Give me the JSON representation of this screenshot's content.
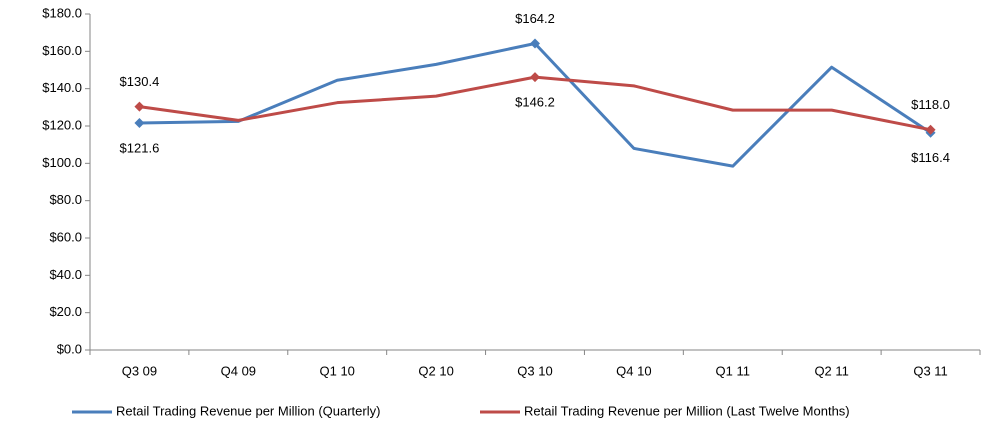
{
  "chart_data": {
    "type": "line",
    "categories": [
      "Q3 09",
      "Q4 09",
      "Q1 10",
      "Q2 10",
      "Q3 10",
      "Q4 10",
      "Q1 11",
      "Q2 11",
      "Q3 11"
    ],
    "series": [
      {
        "name": "Retail Trading Revenue per Million (Quarterly)",
        "color": "#4a7ebb",
        "values": [
          121.6,
          122.5,
          144.5,
          153,
          164.2,
          108,
          98.5,
          151.5,
          116.4
        ],
        "value_labels": [
          "$121.6",
          null,
          null,
          null,
          "$164.2",
          null,
          null,
          null,
          "$116.4"
        ]
      },
      {
        "name": "Retail Trading Revenue per Million (Last Twelve Months)",
        "color": "#be4b48",
        "values": [
          130.4,
          123,
          132.5,
          136,
          146.2,
          141.5,
          128.5,
          128.5,
          118.0
        ],
        "value_labels": [
          "$130.4",
          null,
          null,
          null,
          "$146.2",
          null,
          null,
          null,
          "$118.0"
        ]
      }
    ],
    "ylim": [
      0,
      180
    ],
    "yticks": [
      {
        "value": 0,
        "label": "$0.0"
      },
      {
        "value": 20,
        "label": "$20.0"
      },
      {
        "value": 40,
        "label": "$40.0"
      },
      {
        "value": 60,
        "label": "$60.0"
      },
      {
        "value": 80,
        "label": "$80.0"
      },
      {
        "value": 100,
        "label": "$100.0"
      },
      {
        "value": 120,
        "label": "$120.0"
      },
      {
        "value": 140,
        "label": "$140.0"
      },
      {
        "value": 160,
        "label": "$160.0"
      },
      {
        "value": 180,
        "label": "$180.0"
      }
    ],
    "grid": false,
    "legend": "bottom"
  }
}
